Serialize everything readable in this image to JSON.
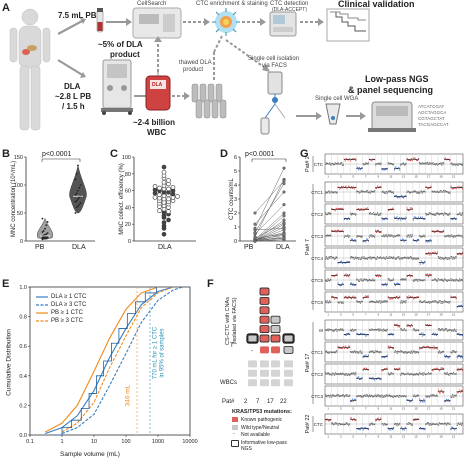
{
  "panelA": {
    "letter": "A",
    "pb_volume": "7.5 mL PB",
    "dla_label": "DLA",
    "dla_volume": "~2.8 L PB",
    "dla_time": "/ 1.5 h",
    "cellsearch": "CellSearch",
    "pct_dla": "~5% of DLA",
    "product": "product",
    "thawed": "thawed DLA",
    "thawed_product": "product",
    "wbc": "~2-4 billion",
    "wbc2": "WBC",
    "dla_bag": "DLA",
    "enrich": "CTC enrichment & staining",
    "detect": "CTC detection",
    "detect_sub": "(DLA-ACCEPT)",
    "clinical": "Clinical validation",
    "isolation": "Single cell isolation",
    "isolation2": "via FACS",
    "wga": "Single cell WGA",
    "ngs": "Low-pass NGS",
    "ngs2": "& panel sequencing"
  },
  "panelB": {
    "letter": "B",
    "pvalue": "p<0.0001",
    "ylabel": "MNC concentration (10⁶/mL)",
    "yticks": [
      "0",
      "50",
      "100",
      "150"
    ],
    "xcats": [
      "PB",
      "DLA"
    ]
  },
  "panelC": {
    "letter": "C",
    "ylabel": "MNC collect. efficiency (%)",
    "yticks": [
      "0",
      "20",
      "40",
      "60",
      "80",
      "100"
    ],
    "xcat": "DLA"
  },
  "panelD": {
    "letter": "D",
    "pvalue": "p<0.0001",
    "ylabel": "CTC counts/mL",
    "yticks": [
      "0",
      "1",
      "2",
      "3",
      "4",
      "5",
      "6"
    ],
    "xcats": [
      "PB",
      "DLA"
    ]
  },
  "panelE": {
    "letter": "E",
    "ylabel": "Cumulative Distribution",
    "xlabel": "Sample volume (mL)",
    "yticks": [
      "0.0",
      "0.2",
      "0.4",
      "0.6",
      "0.8",
      "1.0"
    ],
    "xticks": [
      "0.1",
      "1",
      "10",
      "100",
      "1000",
      "10000"
    ],
    "legend": [
      "DLA ≥ 1 CTC",
      "DLA ≥ 3 CTC",
      "PB ≥ 1 CTC",
      "PB ≥ 3 CTC"
    ],
    "annot1": "346 mL",
    "annot2a": "770 mL for ≥ 1 CTC",
    "annot2b": "in 95% of samples"
  },
  "panelF": {
    "letter": "F",
    "ylabel1": "CS-CTC with CNAs",
    "ylabel2": "(isolated via FACS)",
    "t_label": "T",
    "wbc_label": "WBCs",
    "pat_label": "Pat#",
    "patients": [
      "2",
      "7",
      "17",
      "22"
    ],
    "legend_title": "KRAS/TP53 mutations:",
    "legend": [
      "Known pathogenic",
      "Wild type/Neutral",
      "Not available",
      "Informative low-pass NGS"
    ]
  },
  "panelG": {
    "letter": "G",
    "groups": [
      {
        "name": "Pat# 2",
        "rows": [
          "CTC"
        ]
      },
      {
        "name": "Pat# 7",
        "rows": [
          "CTC1",
          "CTC2",
          "CTC3",
          "CTC4",
          "CTC5",
          "CTC6"
        ]
      },
      {
        "name": "Pat# 17",
        "rows": [
          "M",
          "CTC1",
          "CTC2",
          "CTC3"
        ]
      },
      {
        "name": "Pat# 22",
        "rows": [
          "CTC"
        ]
      }
    ]
  },
  "chart_data": [
    {
      "type": "scatter",
      "title": "p<0.0001",
      "ylabel": "MNC concentration (10⁶/mL)",
      "ylim": [
        0,
        150
      ],
      "categories": [
        "PB",
        "DLA"
      ],
      "series": [
        {
          "name": "PB",
          "values": [
            3,
            4,
            5,
            5,
            6,
            6,
            7,
            7,
            8,
            8,
            9,
            10,
            11,
            12,
            14,
            16,
            18,
            22,
            28,
            34,
            40
          ]
        },
        {
          "name": "DLA",
          "values": [
            50,
            60,
            62,
            65,
            68,
            70,
            72,
            75,
            78,
            80,
            82,
            85,
            90,
            95,
            100,
            110,
            120,
            135
          ]
        }
      ]
    },
    {
      "type": "scatter",
      "ylabel": "MNC collect. efficiency (%)",
      "ylim": [
        0,
        100
      ],
      "categories": [
        "DLA"
      ],
      "values": [
        8,
        15,
        18,
        22,
        25,
        28,
        30,
        32,
        34,
        35,
        36,
        38,
        40,
        41,
        42,
        44,
        45,
        46,
        47,
        48,
        48,
        50,
        50,
        51,
        52,
        52,
        53,
        54,
        55,
        55,
        56,
        57,
        58,
        58,
        60,
        60,
        61,
        62,
        62,
        63,
        64,
        65,
        66,
        68,
        70,
        72,
        75,
        78,
        82,
        88
      ]
    },
    {
      "type": "line",
      "title": "p<0.0001",
      "ylabel": "CTC counts/mL",
      "ylim": [
        0,
        6
      ],
      "categories": [
        "PB",
        "DLA"
      ],
      "pairs": [
        [
          0,
          0.1
        ],
        [
          0,
          0.2
        ],
        [
          0,
          0.3
        ],
        [
          0,
          0.5
        ],
        [
          0,
          0.8
        ],
        [
          0,
          1.0
        ],
        [
          0,
          1.2
        ],
        [
          0,
          1.5
        ],
        [
          0,
          1.8
        ],
        [
          0.1,
          0.2
        ],
        [
          0.1,
          0.4
        ],
        [
          0.1,
          0.6
        ],
        [
          0.1,
          2.0
        ],
        [
          0.2,
          0.5
        ],
        [
          0.2,
          1.3
        ],
        [
          0.3,
          4.4
        ],
        [
          0.5,
          2.6
        ],
        [
          0.6,
          4.1
        ],
        [
          0.8,
          0.9
        ],
        [
          0.9,
          5.2
        ],
        [
          1.2,
          3.5
        ],
        [
          2.0,
          4.3
        ]
      ]
    },
    {
      "type": "line",
      "ylabel": "Cumulative Distribution",
      "xlabel": "Sample volume (mL)",
      "xscale": "log",
      "xlim": [
        0.1,
        10000
      ],
      "ylim": [
        0,
        1
      ],
      "series": [
        {
          "name": "DLA ≥ 1 CTC",
          "x": [
            0.3,
            1,
            3,
            10,
            30,
            100,
            300,
            1000,
            3000
          ],
          "y": [
            0.01,
            0.05,
            0.13,
            0.3,
            0.52,
            0.72,
            0.88,
            0.97,
            1.0
          ]
        },
        {
          "name": "DLA ≥ 3 CTC",
          "x": [
            1,
            3,
            10,
            30,
            100,
            300,
            1000,
            3000,
            6000
          ],
          "y": [
            0.01,
            0.05,
            0.14,
            0.33,
            0.55,
            0.76,
            0.91,
            0.98,
            1.0
          ]
        },
        {
          "name": "PB ≥ 1 CTC",
          "x": [
            0.3,
            1,
            3,
            10,
            30,
            100,
            300,
            1000
          ],
          "y": [
            0.02,
            0.08,
            0.2,
            0.43,
            0.65,
            0.85,
            0.96,
            1.0
          ]
        },
        {
          "name": "PB ≥ 3 CTC",
          "x": [
            1,
            3,
            10,
            30,
            100,
            300,
            1000,
            3000
          ],
          "y": [
            0.02,
            0.08,
            0.22,
            0.45,
            0.67,
            0.86,
            0.96,
            1.0
          ]
        }
      ]
    }
  ],
  "colors": {
    "dla": "#3a7ec0",
    "pb": "#f08a1c",
    "pathogenic": "#e0605a",
    "neutral": "#c8c8c8",
    "gain": "#d84040",
    "loss": "#3a6ad0",
    "annot": "#f08a1c",
    "annot2": "#2a8fb5"
  }
}
